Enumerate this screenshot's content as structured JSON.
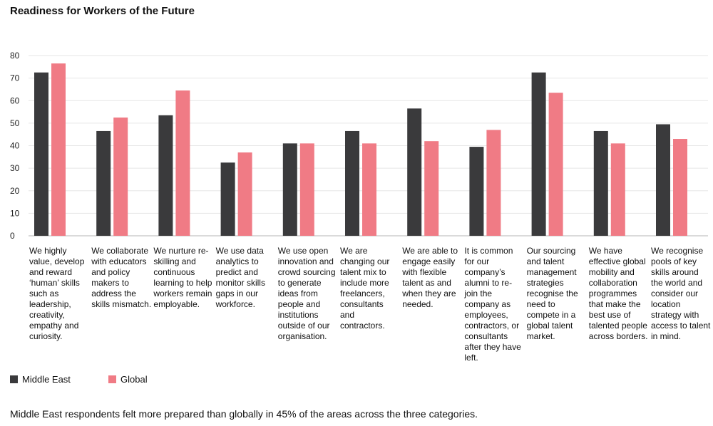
{
  "chart_data": {
    "type": "bar",
    "title": "Readiness for Workers of the Future",
    "ylim": [
      0,
      80
    ],
    "yticks": [
      "0",
      "10",
      "20",
      "30",
      "40",
      "50",
      "60",
      "70",
      "80"
    ],
    "grid": true,
    "legend_position": "bottom-left",
    "categories": [
      "We highly value, develop and reward ‘human’ skills such as leadership, creativity, empathy and curiosity.",
      "We collaborate with educators and policy makers to address the skills mismatch.",
      "We nurture re-skilling and continuous learning to help workers remain employable.",
      "We use data analytics to predict and monitor skills gaps in our workforce.",
      "We use open innovation and crowd sourcing to generate ideas from people and institutions outside of our organisation.",
      "We are changing our talent mix to include more freelancers, consultants and contractors.",
      "We are able to engage easily with flexible talent as and when they are needed.",
      "It is common for our company’s alumni to re-join the company as employees, contractors, or consultants after they have left.",
      "Our sourcing and talent management strategies recognise the need to compete in a global talent market.",
      "We have effective global mobility and collaboration programmes that make the best use of talented people across borders.",
      "We recognise pools of key skills around the world and consider our location strategy with access to talent in mind."
    ],
    "series": [
      {
        "name": "Middle East",
        "color": "#3a3a3c",
        "values": [
          72.5,
          46.5,
          53.5,
          32.5,
          41,
          46.5,
          56.5,
          39.5,
          72.5,
          46.5,
          49.5
        ]
      },
      {
        "name": "Global",
        "color": "#f07b85",
        "values": [
          76.5,
          52.5,
          64.5,
          37,
          41,
          41,
          42,
          47,
          63.5,
          41,
          43
        ]
      }
    ]
  },
  "footnote": "Middle East respondents felt more prepared than globally in 45% of the areas across the three categories."
}
